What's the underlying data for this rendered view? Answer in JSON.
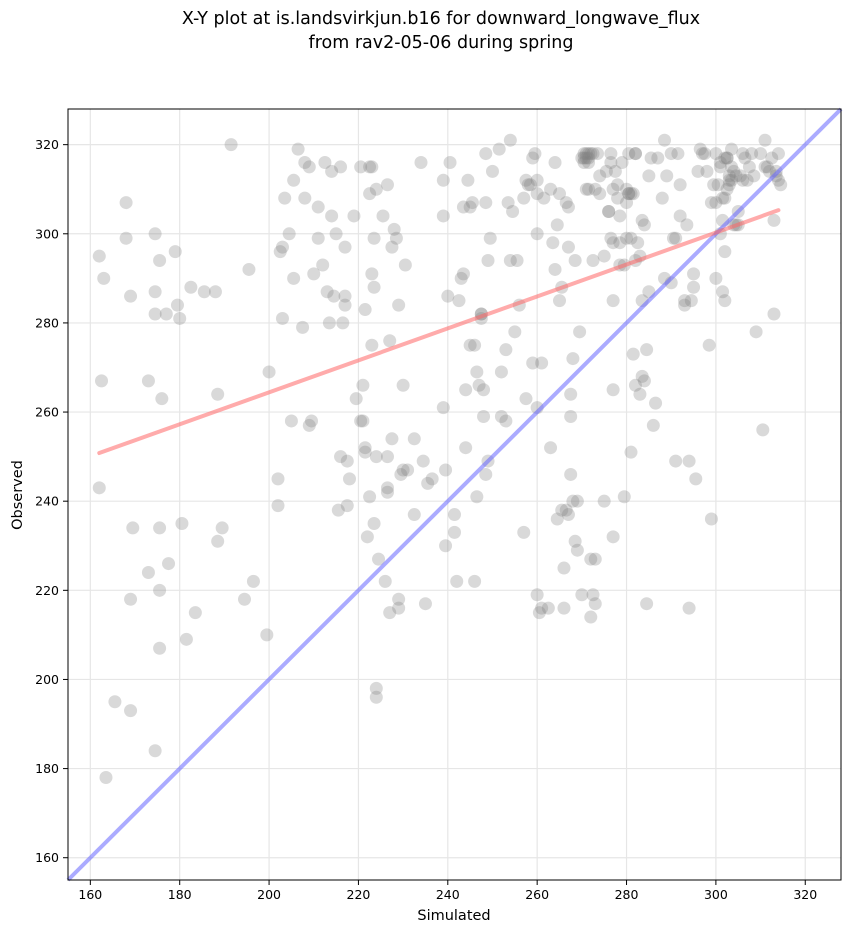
{
  "chart_data": {
    "type": "scatter",
    "title": [
      "X-Y plot at is.landsvirkjun.b16 for downward_longwave_flux",
      "from rav2-05-06 during spring"
    ],
    "xlabel": "Simulated",
    "ylabel": "Observed",
    "xlim": [
      155,
      328
    ],
    "ylim": [
      155,
      328
    ],
    "xticks": [
      160,
      180,
      200,
      220,
      240,
      260,
      280,
      300,
      320
    ],
    "yticks": [
      160,
      180,
      200,
      220,
      240,
      260,
      280,
      300,
      320
    ],
    "grid": true,
    "colors": {
      "points": "#808080",
      "regression": "#ff6666",
      "identity": "#6666ff",
      "grid": "#e6e6e6"
    },
    "regression_line": {
      "x": [
        162,
        314
      ],
      "y": [
        250.8,
        305.3
      ]
    },
    "identity_line": {
      "x": [
        155,
        328
      ],
      "y": [
        155,
        328
      ]
    },
    "points": [
      [
        163.5,
        178
      ],
      [
        165.5,
        195
      ],
      [
        169,
        193
      ],
      [
        174.5,
        184
      ],
      [
        162,
        295
      ],
      [
        163,
        290
      ],
      [
        162.5,
        267
      ],
      [
        162,
        243
      ],
      [
        168,
        307
      ],
      [
        168,
        299
      ],
      [
        169,
        286
      ],
      [
        169,
        218
      ],
      [
        169.5,
        234
      ],
      [
        173,
        267
      ],
      [
        173,
        224
      ],
      [
        174.5,
        300
      ],
      [
        174.5,
        287
      ],
      [
        174.5,
        282
      ],
      [
        175.5,
        294
      ],
      [
        175.5,
        234
      ],
      [
        175.5,
        220
      ],
      [
        175.5,
        207
      ],
      [
        176,
        263
      ],
      [
        177,
        282
      ],
      [
        177.5,
        226
      ],
      [
        179,
        296
      ],
      [
        179.5,
        284
      ],
      [
        180,
        281
      ],
      [
        180.5,
        235
      ],
      [
        181.5,
        209
      ],
      [
        182.5,
        288
      ],
      [
        183.5,
        215
      ],
      [
        185.5,
        287
      ],
      [
        188,
        287
      ],
      [
        188.5,
        264
      ],
      [
        188.5,
        231
      ],
      [
        189.5,
        234
      ],
      [
        191.5,
        320
      ],
      [
        194.5,
        218
      ],
      [
        195.5,
        292
      ],
      [
        196.5,
        222
      ],
      [
        199.5,
        210
      ],
      [
        200,
        269
      ],
      [
        202,
        245
      ],
      [
        202,
        239
      ],
      [
        202.5,
        296
      ],
      [
        203,
        281
      ],
      [
        203,
        297
      ],
      [
        203.5,
        308
      ],
      [
        204.5,
        300
      ],
      [
        205,
        258
      ],
      [
        205.5,
        290
      ],
      [
        205.5,
        312
      ],
      [
        206.5,
        319
      ],
      [
        207.5,
        279
      ],
      [
        208,
        308
      ],
      [
        208,
        316
      ],
      [
        209,
        315
      ],
      [
        209,
        257
      ],
      [
        209.5,
        258
      ],
      [
        210,
        291
      ],
      [
        211,
        306
      ],
      [
        211,
        299
      ],
      [
        212,
        293
      ],
      [
        212.5,
        316
      ],
      [
        213,
        287
      ],
      [
        213.5,
        280
      ],
      [
        214,
        314
      ],
      [
        214,
        304
      ],
      [
        214.5,
        286
      ],
      [
        215,
        300
      ],
      [
        215.5,
        238
      ],
      [
        216,
        250
      ],
      [
        216,
        315
      ],
      [
        216.5,
        280
      ],
      [
        217,
        284
      ],
      [
        217,
        286
      ],
      [
        217,
        297
      ],
      [
        217.5,
        249
      ],
      [
        217.5,
        239
      ],
      [
        218,
        245
      ],
      [
        219,
        304
      ],
      [
        219.5,
        263
      ],
      [
        220.5,
        315
      ],
      [
        220.5,
        258
      ],
      [
        221,
        258
      ],
      [
        221,
        266
      ],
      [
        221.5,
        252
      ],
      [
        221.5,
        283
      ],
      [
        221.5,
        251
      ],
      [
        222,
        232
      ],
      [
        222.5,
        309
      ],
      [
        222.5,
        315
      ],
      [
        222.5,
        241
      ],
      [
        223,
        291
      ],
      [
        223,
        275
      ],
      [
        223,
        315
      ],
      [
        223.5,
        288
      ],
      [
        223.5,
        299
      ],
      [
        223.5,
        235
      ],
      [
        224,
        310
      ],
      [
        224,
        250
      ],
      [
        224,
        198
      ],
      [
        224,
        196
      ],
      [
        224.5,
        227
      ],
      [
        225.5,
        304
      ],
      [
        226,
        222
      ],
      [
        226.5,
        250
      ],
      [
        226.5,
        242
      ],
      [
        226.5,
        243
      ],
      [
        226.5,
        311
      ],
      [
        227,
        276
      ],
      [
        227,
        215
      ],
      [
        227.5,
        297
      ],
      [
        227.5,
        254
      ],
      [
        228,
        301
      ],
      [
        228.5,
        299
      ],
      [
        229,
        218
      ],
      [
        229,
        284
      ],
      [
        229,
        216
      ],
      [
        229.5,
        246
      ],
      [
        230,
        247
      ],
      [
        230,
        266
      ],
      [
        230.5,
        293
      ],
      [
        231,
        247
      ],
      [
        232.5,
        237
      ],
      [
        232.5,
        254
      ],
      [
        234,
        316
      ],
      [
        234.5,
        249
      ],
      [
        235,
        217
      ],
      [
        235.5,
        244
      ],
      [
        236.5,
        245
      ],
      [
        239,
        304
      ],
      [
        239,
        312
      ],
      [
        239,
        261
      ],
      [
        239.5,
        230
      ],
      [
        239.5,
        247
      ],
      [
        240,
        286
      ],
      [
        240.5,
        316
      ],
      [
        241.5,
        237
      ],
      [
        241.5,
        233
      ],
      [
        242,
        222
      ],
      [
        242.5,
        285
      ],
      [
        243,
        290
      ],
      [
        243.5,
        291
      ],
      [
        243.5,
        306
      ],
      [
        244,
        252
      ],
      [
        244,
        265
      ],
      [
        244.5,
        312
      ],
      [
        245,
        306
      ],
      [
        245,
        275
      ],
      [
        245.5,
        307
      ],
      [
        246,
        222
      ],
      [
        246,
        275
      ],
      [
        246.5,
        269
      ],
      [
        246.5,
        241
      ],
      [
        247,
        266
      ],
      [
        247.5,
        282
      ],
      [
        247.5,
        282
      ],
      [
        247.5,
        281
      ],
      [
        248,
        265
      ],
      [
        248,
        259
      ],
      [
        248.5,
        307
      ],
      [
        248.5,
        318
      ],
      [
        248.5,
        246
      ],
      [
        249,
        249
      ],
      [
        249,
        294
      ],
      [
        249.5,
        299
      ],
      [
        250,
        314
      ],
      [
        251.5,
        319
      ],
      [
        252,
        259
      ],
      [
        252,
        269
      ],
      [
        253,
        274
      ],
      [
        253,
        258
      ],
      [
        253.5,
        307
      ],
      [
        254,
        321
      ],
      [
        254,
        294
      ],
      [
        254.5,
        305
      ],
      [
        255,
        278
      ],
      [
        255.5,
        294
      ],
      [
        256,
        284
      ],
      [
        257,
        233
      ],
      [
        257,
        308
      ],
      [
        257.5,
        312
      ],
      [
        257.5,
        263
      ],
      [
        258,
        311
      ],
      [
        258.5,
        311
      ],
      [
        259,
        271
      ],
      [
        259,
        317
      ],
      [
        259.5,
        318
      ],
      [
        260,
        261
      ],
      [
        260,
        312
      ],
      [
        260,
        219
      ],
      [
        260,
        309
      ],
      [
        260,
        300
      ],
      [
        260.5,
        215
      ],
      [
        261,
        271
      ],
      [
        261,
        216
      ],
      [
        261.5,
        308
      ],
      [
        262.5,
        216
      ],
      [
        263,
        252
      ],
      [
        263,
        310
      ],
      [
        263.5,
        298
      ],
      [
        264,
        292
      ],
      [
        264,
        316
      ],
      [
        264.5,
        302
      ],
      [
        264.5,
        236
      ],
      [
        265,
        309
      ],
      [
        265,
        285
      ],
      [
        265.5,
        238
      ],
      [
        265.5,
        288
      ],
      [
        266,
        216
      ],
      [
        266,
        225
      ],
      [
        266.5,
        307
      ],
      [
        266.5,
        238
      ],
      [
        267,
        306
      ],
      [
        267,
        297
      ],
      [
        267,
        237
      ],
      [
        267.5,
        264
      ],
      [
        267.5,
        259
      ],
      [
        267.5,
        246
      ],
      [
        268,
        272
      ],
      [
        268,
        240
      ],
      [
        268.5,
        294
      ],
      [
        268.5,
        231
      ],
      [
        269,
        229
      ],
      [
        269,
        240
      ],
      [
        269.5,
        278
      ],
      [
        270,
        219
      ],
      [
        270.5,
        318
      ],
      [
        270.5,
        316
      ],
      [
        271,
        317
      ],
      [
        271,
        310
      ],
      [
        271.5,
        318
      ],
      [
        271.5,
        317
      ],
      [
        271.5,
        310
      ],
      [
        272,
        214
      ],
      [
        272,
        227
      ],
      [
        272.5,
        318
      ],
      [
        272.5,
        294
      ],
      [
        272.5,
        219
      ],
      [
        273,
        217
      ],
      [
        273,
        227
      ],
      [
        273,
        310
      ],
      [
        273.5,
        318
      ],
      [
        274,
        309
      ],
      [
        274,
        313
      ],
      [
        275,
        295
      ],
      [
        275,
        240
      ],
      [
        275.5,
        314
      ],
      [
        276,
        305
      ],
      [
        276.5,
        318
      ],
      [
        276.5,
        299
      ],
      [
        276.5,
        316
      ],
      [
        277,
        298
      ],
      [
        277,
        310
      ],
      [
        277,
        285
      ],
      [
        277,
        232
      ],
      [
        277,
        265
      ],
      [
        277.5,
        314
      ],
      [
        278,
        308
      ],
      [
        278,
        311
      ],
      [
        278.5,
        298
      ],
      [
        278.5,
        304
      ],
      [
        278.5,
        293
      ],
      [
        279,
        316
      ],
      [
        279.5,
        293
      ],
      [
        279.5,
        241
      ],
      [
        280,
        299
      ],
      [
        280,
        310
      ],
      [
        280,
        307
      ],
      [
        280.5,
        318
      ],
      [
        280.5,
        309
      ],
      [
        281,
        309
      ],
      [
        281,
        299
      ],
      [
        281,
        251
      ],
      [
        281.5,
        273
      ],
      [
        282,
        266
      ],
      [
        282,
        294
      ],
      [
        282,
        318
      ],
      [
        282,
        318
      ],
      [
        282.5,
        298
      ],
      [
        283,
        295
      ],
      [
        283,
        264
      ],
      [
        283.5,
        285
      ],
      [
        283.5,
        303
      ],
      [
        283.5,
        268
      ],
      [
        284,
        302
      ],
      [
        284,
        267
      ],
      [
        284.5,
        274
      ],
      [
        284.5,
        217
      ],
      [
        285,
        313
      ],
      [
        285,
        287
      ],
      [
        285.5,
        317
      ],
      [
        286,
        257
      ],
      [
        286.5,
        262
      ],
      [
        287,
        317
      ],
      [
        288,
        308
      ],
      [
        288.5,
        290
      ],
      [
        288.5,
        321
      ],
      [
        289,
        313
      ],
      [
        290,
        289
      ],
      [
        290,
        318
      ],
      [
        290.5,
        299
      ],
      [
        291,
        299
      ],
      [
        291,
        249
      ],
      [
        291.5,
        318
      ],
      [
        292,
        311
      ],
      [
        292,
        304
      ],
      [
        293,
        285
      ],
      [
        293,
        284
      ],
      [
        293.5,
        302
      ],
      [
        294,
        216
      ],
      [
        294,
        249
      ],
      [
        294.5,
        285
      ],
      [
        295,
        291
      ],
      [
        295,
        288
      ],
      [
        295.5,
        245
      ],
      [
        296,
        314
      ],
      [
        296.5,
        319
      ],
      [
        297,
        318
      ],
      [
        297.5,
        318
      ],
      [
        298,
        314
      ],
      [
        298.5,
        275
      ],
      [
        299,
        236
      ],
      [
        299,
        307
      ],
      [
        299.5,
        311
      ],
      [
        300,
        290
      ],
      [
        300,
        307
      ],
      [
        300,
        318
      ],
      [
        300.5,
        311
      ],
      [
        301,
        316
      ],
      [
        301,
        315
      ],
      [
        301,
        300
      ],
      [
        301.5,
        303
      ],
      [
        301.5,
        287
      ],
      [
        301.5,
        308
      ],
      [
        302,
        285
      ],
      [
        302,
        296
      ],
      [
        302,
        317
      ],
      [
        302,
        308
      ],
      [
        302.5,
        310
      ],
      [
        302.5,
        317
      ],
      [
        303,
        312
      ],
      [
        303,
        313
      ],
      [
        303,
        311
      ],
      [
        303.5,
        315
      ],
      [
        303.5,
        319
      ],
      [
        304,
        302
      ],
      [
        304,
        314
      ],
      [
        304.5,
        302
      ],
      [
        304.5,
        313
      ],
      [
        305,
        305
      ],
      [
        305,
        302
      ],
      [
        305.5,
        313
      ],
      [
        306,
        312
      ],
      [
        306.5,
        317
      ],
      [
        307,
        312
      ],
      [
        307.5,
        315
      ],
      [
        308,
        318
      ],
      [
        308.5,
        313
      ],
      [
        309,
        278
      ],
      [
        310,
        318
      ],
      [
        310.5,
        256
      ],
      [
        311,
        315
      ],
      [
        311,
        321
      ],
      [
        311.5,
        315
      ],
      [
        312,
        314
      ],
      [
        312.5,
        317
      ],
      [
        313,
        303
      ],
      [
        313,
        282
      ],
      [
        313.5,
        314
      ],
      [
        313.5,
        313
      ],
      [
        314,
        312
      ],
      [
        314,
        318
      ],
      [
        314.5,
        311
      ],
      [
        302.5,
        317
      ],
      [
        303.5,
        312
      ],
      [
        306,
        318
      ],
      [
        276,
        305
      ],
      [
        270.5,
        317
      ],
      [
        271,
        318
      ],
      [
        272,
        318
      ],
      [
        270,
        317
      ],
      [
        271.5,
        316
      ],
      [
        280.5,
        309
      ],
      [
        281.5,
        309
      ]
    ]
  }
}
